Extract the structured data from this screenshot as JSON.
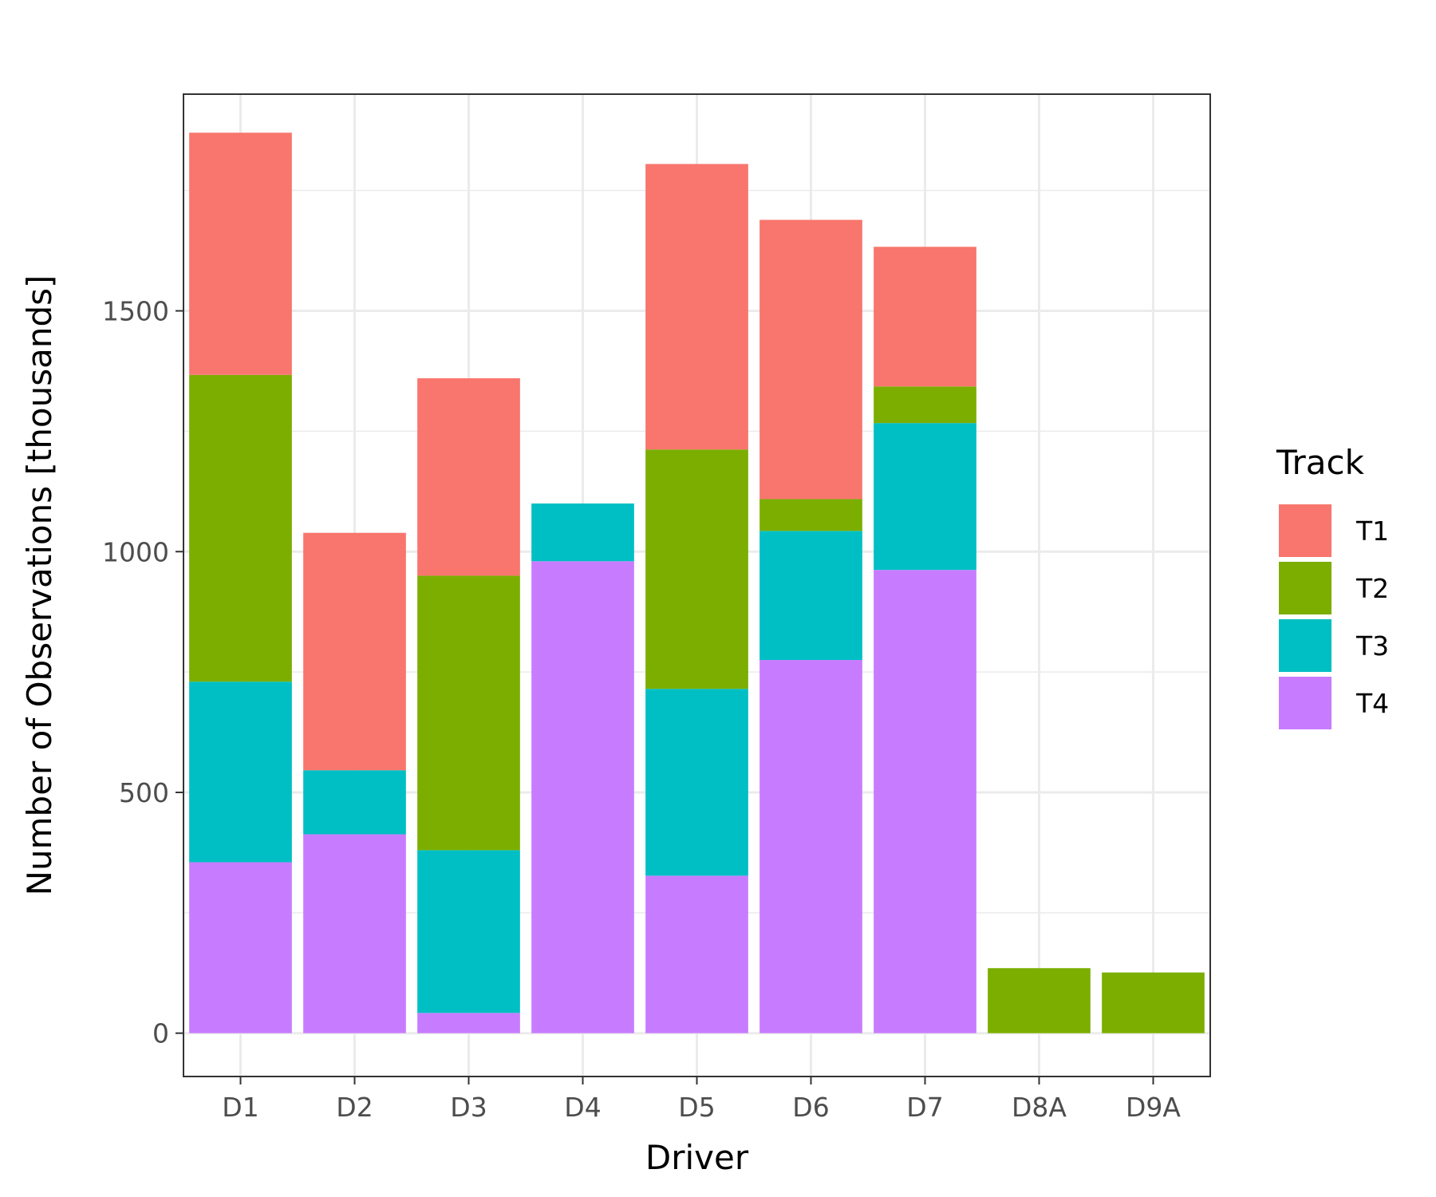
{
  "chart_data": {
    "type": "bar",
    "stacked": true,
    "xlabel": "Driver",
    "ylabel": "Number of Observations [thousands]",
    "ylim": [
      -90,
      1950
    ],
    "yticks": [
      0,
      500,
      1000,
      1500
    ],
    "grid": true,
    "legend_placement": "right",
    "legend_title": "Track",
    "categories": [
      "D1",
      "D2",
      "D3",
      "D4",
      "D5",
      "D6",
      "D7",
      "D8A",
      "D9A"
    ],
    "series": [
      {
        "name": "T4",
        "color": "#C77CFF",
        "values": [
          355,
          413,
          42,
          980,
          327,
          775,
          962,
          0,
          0
        ]
      },
      {
        "name": "T3",
        "color": "#00BFC4",
        "values": [
          375,
          133,
          338,
          120,
          388,
          268,
          305,
          0,
          0
        ]
      },
      {
        "name": "T2",
        "color": "#7CAE00",
        "values": [
          637,
          0,
          570,
          0,
          497,
          66,
          76,
          135,
          126
        ]
      },
      {
        "name": "T1",
        "color": "#F8766D",
        "values": [
          503,
          493,
          410,
          0,
          593,
          580,
          290,
          0,
          0
        ]
      }
    ],
    "legend_order": [
      "T1",
      "T2",
      "T3",
      "T4"
    ]
  }
}
